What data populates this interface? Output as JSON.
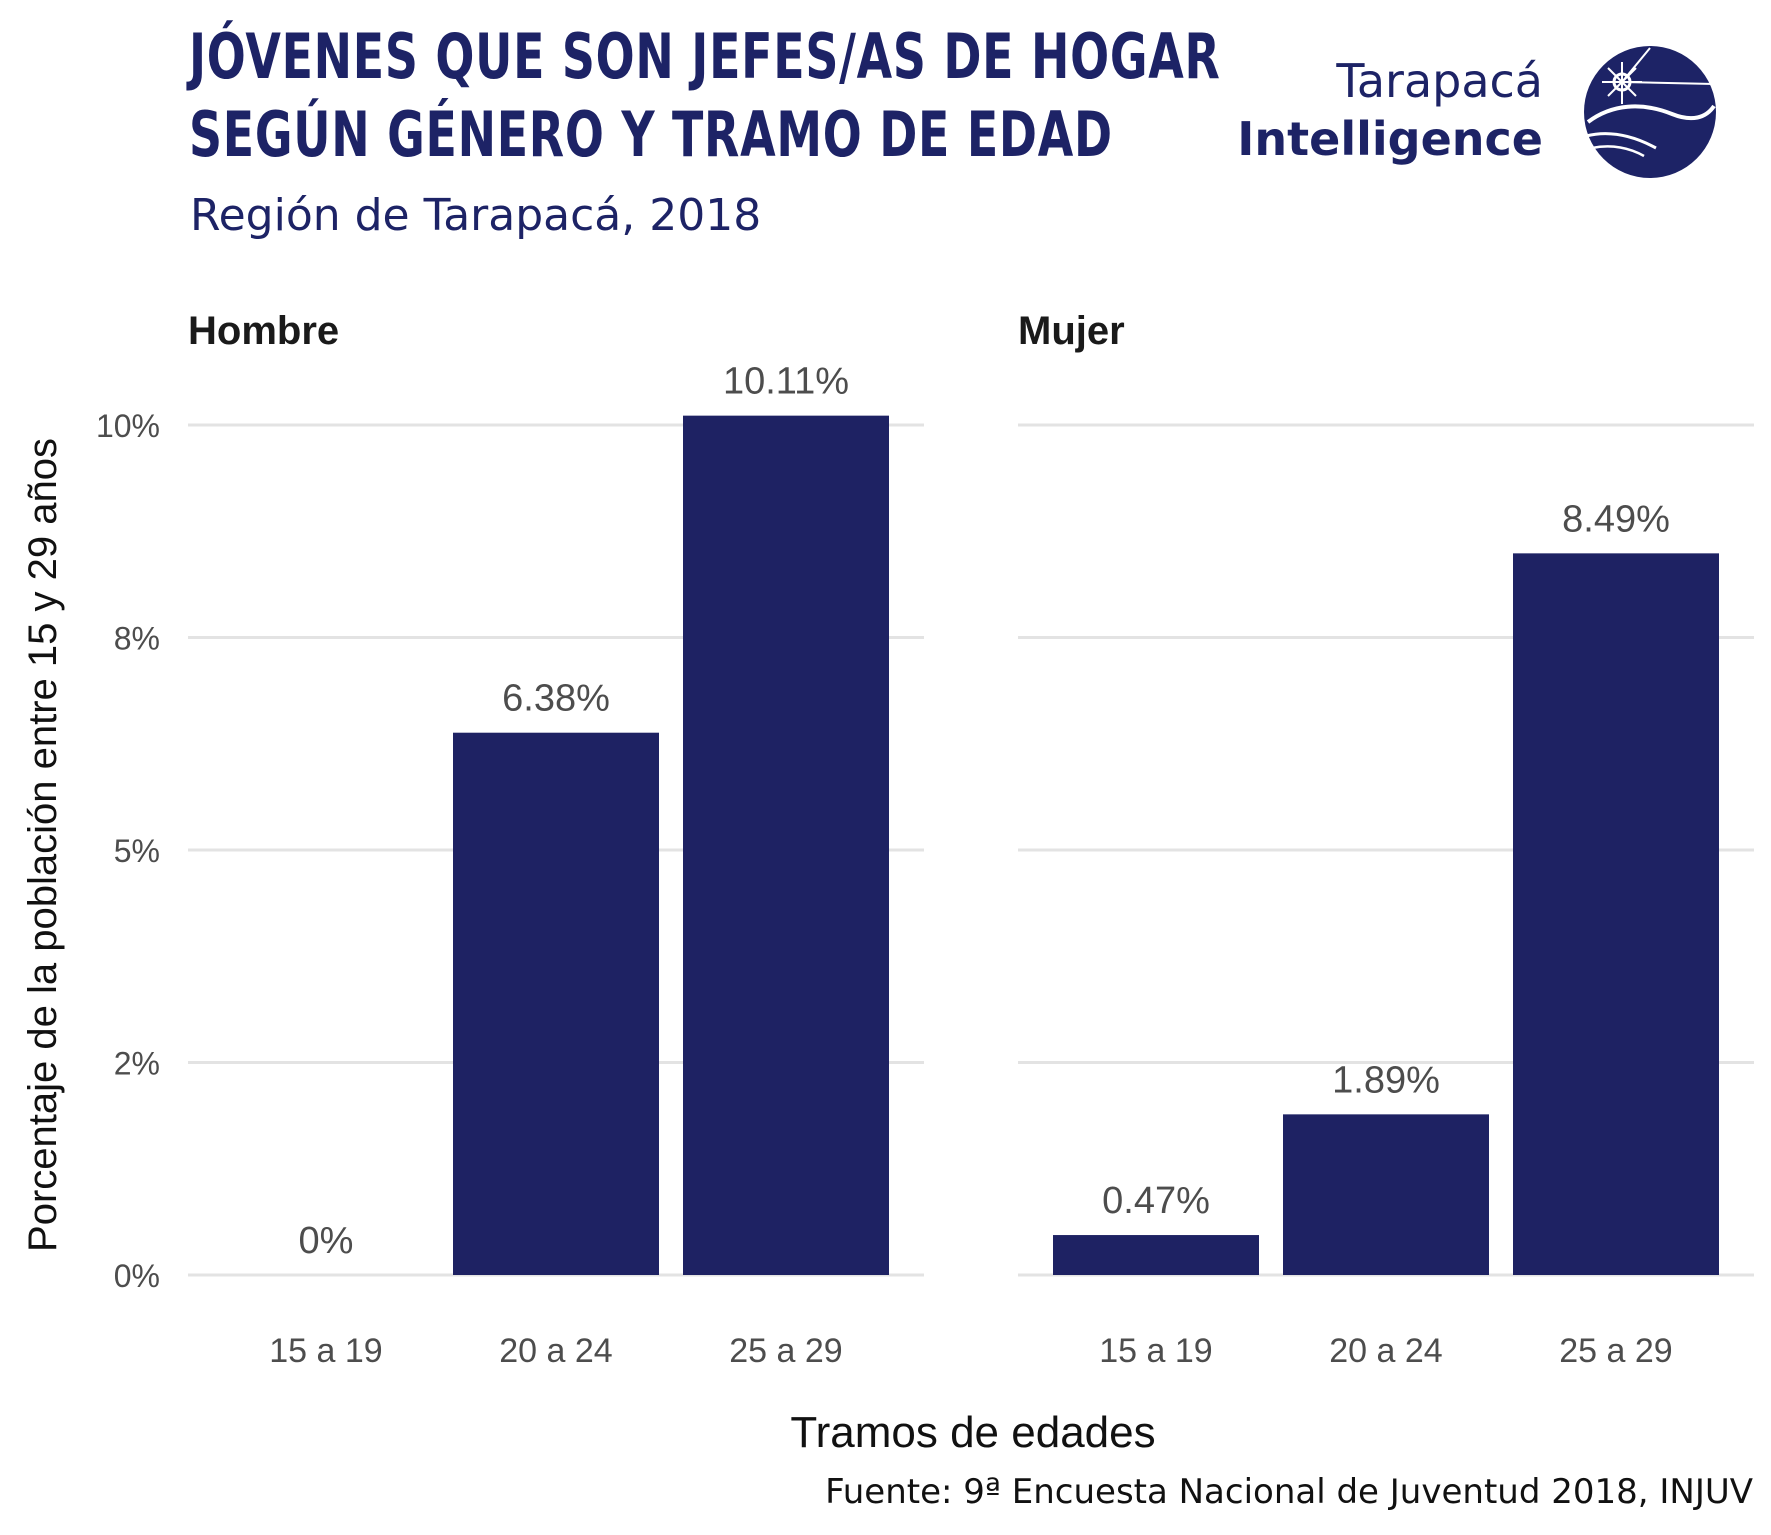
{
  "header": {
    "title_line1": "JÓVENES QUE SON JEFES/AS DE HOGAR",
    "title_line2": "SEGÚN GÉNERO Y TRAMO DE EDAD",
    "subtitle": "Región de Tarapacá, 2018"
  },
  "logo": {
    "line1": "Tarapacá",
    "line2": "Intelligence",
    "icon": "globe-compass-icon"
  },
  "footer": {
    "source": "Fuente: 9ª Encuesta Nacional de Juventud 2018, INJUV"
  },
  "colors": {
    "bar": "#1e2263",
    "title": "#1d2366",
    "grid": "#e3e3e3",
    "label": "#4d4d4d"
  },
  "chart_data": {
    "type": "bar",
    "facets": [
      {
        "name": "Hombre",
        "categories": [
          "15 a 19",
          "20 a 24",
          "25 a 29"
        ],
        "values": [
          0,
          6.38,
          10.11
        ],
        "labels": [
          "0%",
          "6.38%",
          "10.11%"
        ]
      },
      {
        "name": "Mujer",
        "categories": [
          "15 a 19",
          "20 a 24",
          "25 a 29"
        ],
        "values": [
          0.47,
          1.89,
          8.49
        ],
        "labels": [
          "0.47%",
          "1.89%",
          "8.49%"
        ]
      }
    ],
    "xlabel": "Tramos de edades",
    "ylabel": "Porcentaje de la población entre 15 y 29 años",
    "yticks": [
      0,
      2.5,
      5,
      7.5,
      10
    ],
    "ytick_labels": [
      "0%",
      "2%",
      "5%",
      "8%",
      "10%"
    ],
    "ylim": [
      0,
      10.11
    ],
    "grid": true,
    "legend": "none"
  }
}
